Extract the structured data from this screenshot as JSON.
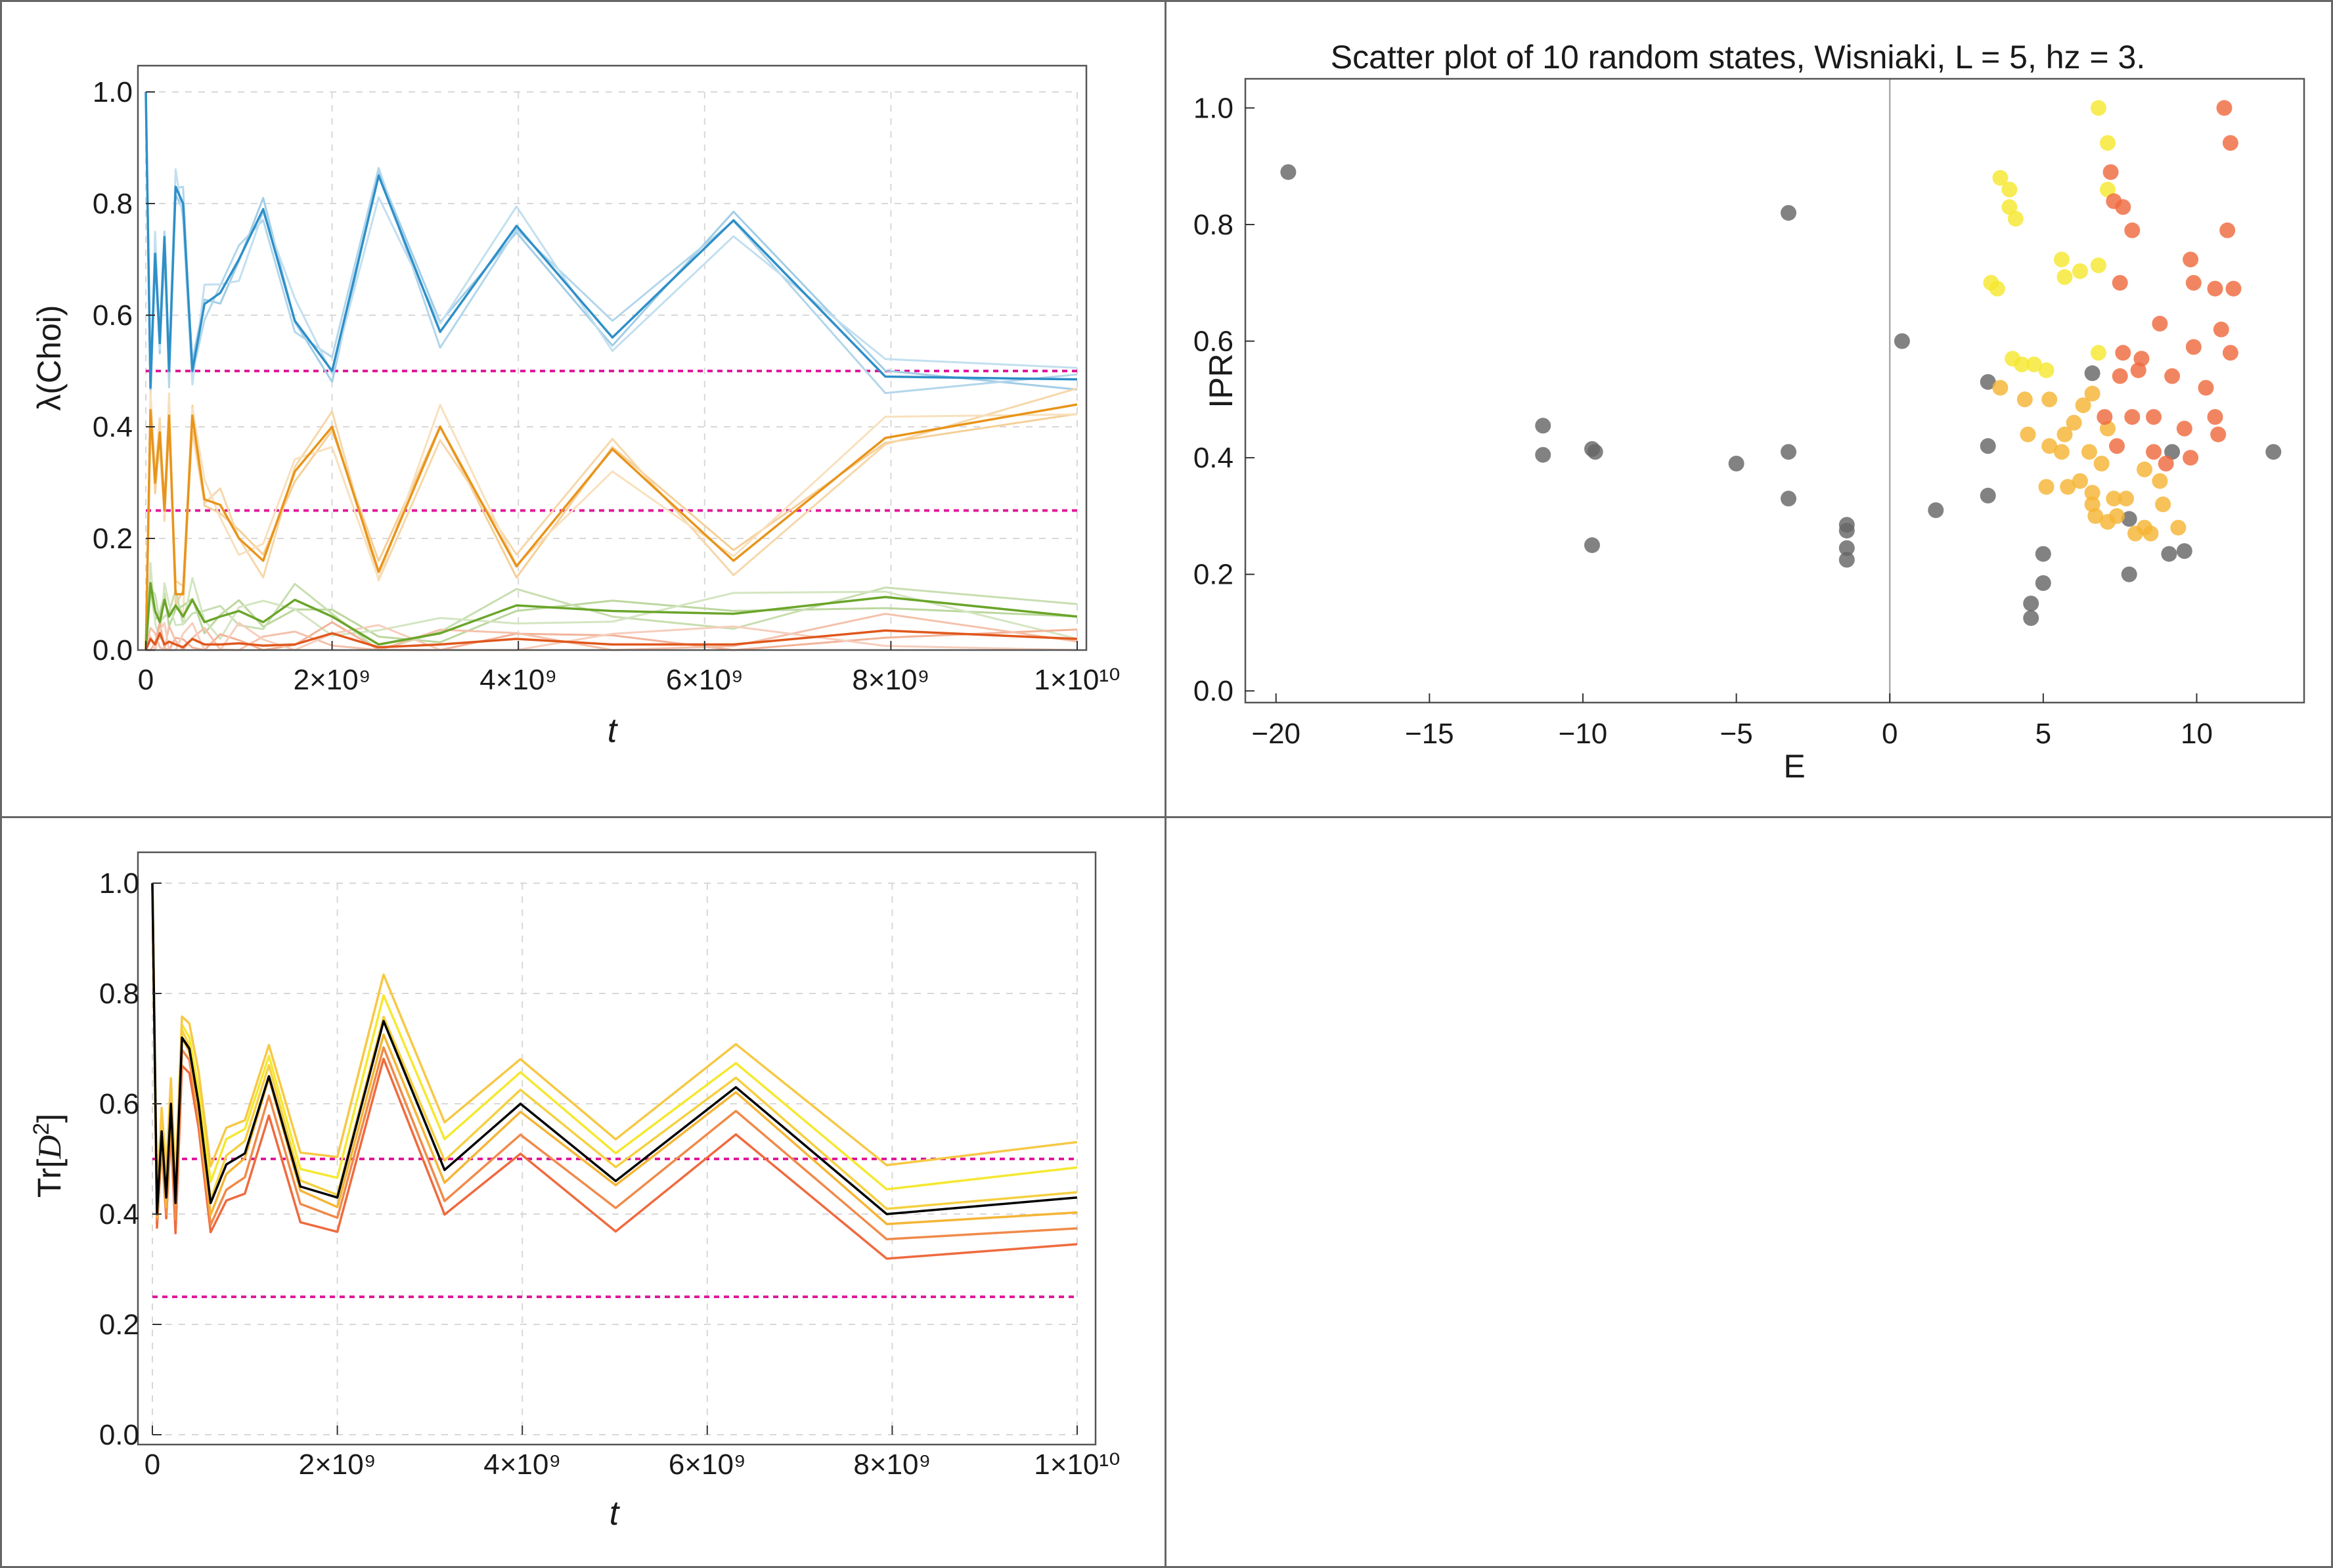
{
  "charts": {
    "choi": {
      "xlabel": "t",
      "ylabel": "λ(Choi)",
      "x_ticks": [
        "0",
        "2×10⁹",
        "4×10⁹",
        "6×10⁹",
        "8×10⁹",
        "1×10¹⁰"
      ],
      "y_ticks": [
        "0.0",
        "0.2",
        "0.4",
        "0.6",
        "0.8",
        "1.0"
      ]
    },
    "scatter": {
      "title": "Scatter plot of 10 random states, Wisniaki, L = 5, hz = 3.",
      "xlabel": "E",
      "ylabel": "IPR",
      "x_ticks": [
        "−20",
        "−15",
        "−10",
        "−5",
        "0",
        "5",
        "10"
      ],
      "y_ticks": [
        "0.0",
        "0.2",
        "0.4",
        "0.6",
        "0.8",
        "1.0"
      ]
    },
    "trace": {
      "xlabel": "t",
      "ylabel_main": "Tr[",
      "ylabel_script": "D",
      "ylabel_exp": "2",
      "ylabel_close": "]",
      "x_ticks": [
        "0",
        "2×10⁹",
        "4×10⁹",
        "6×10⁹",
        "8×10⁹",
        "1×10¹⁰"
      ],
      "y_ticks": [
        "0.0",
        "0.2",
        "0.4",
        "0.6",
        "0.8",
        "1.0"
      ]
    }
  },
  "chart_data": [
    {
      "type": "line",
      "xlabel": "t",
      "ylabel": "λ(Choi)",
      "xlim": [
        0,
        10000000000
      ],
      "ylim": [
        0,
        1
      ],
      "grid": true,
      "reference_lines": [
        {
          "y": 0.5,
          "color": "#e0199a"
        },
        {
          "y": 0.25,
          "color": "#e0199a"
        }
      ],
      "x": [
        0,
        50000000,
        100000000,
        150000000,
        200000000,
        250000000,
        320000000,
        400000000,
        500000000,
        630000000,
        800000000,
        1000000000,
        1260000000,
        1600000000,
        2000000000,
        2500000000,
        3160000000,
        3980000000,
        5010000000,
        6310000000,
        7940000000,
        10000000000
      ],
      "series": [
        {
          "color": "#2e8fc8",
          "values": [
            1.0,
            0.47,
            0.71,
            0.55,
            0.74,
            0.5,
            0.83,
            0.8,
            0.5,
            0.62,
            0.64,
            0.7,
            0.79,
            0.59,
            0.5,
            0.85,
            0.57,
            0.76,
            0.56,
            0.77,
            0.49,
            0.485
          ]
        },
        {
          "color": "#e8941a",
          "values": [
            0.0,
            0.43,
            0.3,
            0.39,
            0.25,
            0.42,
            0.1,
            0.1,
            0.42,
            0.27,
            0.26,
            0.2,
            0.16,
            0.32,
            0.4,
            0.14,
            0.4,
            0.15,
            0.36,
            0.16,
            0.38,
            0.44
          ]
        },
        {
          "color": "#6aa52a",
          "values": [
            0.0,
            0.12,
            0.07,
            0.05,
            0.09,
            0.06,
            0.08,
            0.06,
            0.09,
            0.05,
            0.06,
            0.07,
            0.05,
            0.09,
            0.06,
            0.01,
            0.03,
            0.08,
            0.07,
            0.065,
            0.095,
            0.06
          ]
        },
        {
          "color": "#e0571d",
          "values": [
            0.0,
            0.02,
            0.01,
            0.03,
            0.01,
            0.015,
            0.01,
            0.005,
            0.02,
            0.01,
            0.01,
            0.012,
            0.008,
            0.01,
            0.03,
            0.005,
            0.01,
            0.02,
            0.01,
            0.01,
            0.035,
            0.02
          ]
        }
      ]
    },
    {
      "type": "scatter",
      "title": "Scatter plot of 10 random states, Wisniaki, L = 5, hz = 3.",
      "xlabel": "E",
      "ylabel": "IPR",
      "xlim": [
        -21,
        13.5
      ],
      "ylim": [
        -0.02,
        1.05
      ],
      "grid": false,
      "series": [
        {
          "color": "#666666",
          "points": [
            [
              -19.6,
              0.89
            ],
            [
              -11.3,
              0.455
            ],
            [
              -11.3,
              0.405
            ],
            [
              -9.7,
              0.415
            ],
            [
              -9.6,
              0.41
            ],
            [
              -9.7,
              0.25
            ],
            [
              -5,
              0.39
            ],
            [
              -3.3,
              0.82
            ],
            [
              -3.3,
              0.41
            ],
            [
              -3.3,
              0.33
            ],
            [
              -1.4,
              0.285
            ],
            [
              -1.4,
              0.275
            ],
            [
              -1.4,
              0.245
            ],
            [
              -1.4,
              0.225
            ],
            [
              0.4,
              0.6
            ],
            [
              1.5,
              0.31
            ],
            [
              3.2,
              0.53
            ],
            [
              3.2,
              0.42
            ],
            [
              3.2,
              0.335
            ],
            [
              4.6,
              0.15
            ],
            [
              4.6,
              0.125
            ],
            [
              5.0,
              0.235
            ],
            [
              5.0,
              0.185
            ],
            [
              6.6,
              0.545
            ],
            [
              7.8,
              0.295
            ],
            [
              7.8,
              0.2
            ],
            [
              9.1,
              0.235
            ],
            [
              9.6,
              0.24
            ],
            [
              9.2,
              0.41
            ],
            [
              12.5,
              0.41
            ]
          ]
        },
        {
          "color": "#f5e830",
          "points": [
            [
              6.8,
              1.0
            ],
            [
              7.1,
              0.94
            ],
            [
              3.6,
              0.88
            ],
            [
              3.9,
              0.86
            ],
            [
              3.9,
              0.83
            ],
            [
              4.1,
              0.81
            ],
            [
              7.1,
              0.86
            ],
            [
              3.3,
              0.7
            ],
            [
              3.5,
              0.69
            ],
            [
              5.6,
              0.74
            ],
            [
              5.7,
              0.71
            ],
            [
              6.8,
              0.73
            ],
            [
              4.0,
              0.57
            ],
            [
              4.3,
              0.56
            ],
            [
              4.7,
              0.56
            ],
            [
              5.1,
              0.55
            ],
            [
              6.2,
              0.72
            ],
            [
              6.8,
              0.58
            ]
          ]
        },
        {
          "color": "#f5b535",
          "points": [
            [
              3.6,
              0.52
            ],
            [
              4.4,
              0.5
            ],
            [
              5.2,
              0.5
            ],
            [
              5.7,
              0.44
            ],
            [
              6.0,
              0.46
            ],
            [
              6.3,
              0.49
            ],
            [
              6.6,
              0.51
            ],
            [
              7.1,
              0.45
            ],
            [
              4.5,
              0.44
            ],
            [
              5.2,
              0.42
            ],
            [
              5.6,
              0.41
            ],
            [
              6.5,
              0.41
            ],
            [
              6.9,
              0.39
            ],
            [
              5.1,
              0.35
            ],
            [
              5.8,
              0.35
            ],
            [
              6.2,
              0.36
            ],
            [
              6.6,
              0.34
            ],
            [
              7.3,
              0.33
            ],
            [
              7.7,
              0.33
            ],
            [
              8.3,
              0.38
            ],
            [
              8.8,
              0.36
            ],
            [
              6.7,
              0.3
            ],
            [
              7.1,
              0.29
            ],
            [
              7.4,
              0.3
            ],
            [
              8.0,
              0.27
            ],
            [
              8.3,
              0.28
            ],
            [
              8.9,
              0.32
            ],
            [
              9.4,
              0.28
            ],
            [
              6.6,
              0.32
            ],
            [
              8.5,
              0.27
            ]
          ]
        },
        {
          "color": "#ef6a3e",
          "points": [
            [
              10.9,
              1.0
            ],
            [
              11.1,
              0.94
            ],
            [
              7.2,
              0.89
            ],
            [
              7.3,
              0.84
            ],
            [
              7.6,
              0.83
            ],
            [
              7.9,
              0.79
            ],
            [
              11.0,
              0.79
            ],
            [
              7.5,
              0.7
            ],
            [
              9.8,
              0.74
            ],
            [
              9.9,
              0.7
            ],
            [
              10.6,
              0.69
            ],
            [
              11.2,
              0.69
            ],
            [
              8.8,
              0.63
            ],
            [
              10.8,
              0.62
            ],
            [
              7.6,
              0.58
            ],
            [
              8.2,
              0.57
            ],
            [
              9.9,
              0.59
            ],
            [
              11.1,
              0.58
            ],
            [
              7.5,
              0.54
            ],
            [
              8.1,
              0.55
            ],
            [
              9.2,
              0.54
            ],
            [
              10.3,
              0.52
            ],
            [
              7.0,
              0.47
            ],
            [
              7.9,
              0.47
            ],
            [
              8.6,
              0.47
            ],
            [
              9.6,
              0.45
            ],
            [
              10.6,
              0.47
            ],
            [
              7.4,
              0.42
            ],
            [
              8.6,
              0.41
            ],
            [
              9.0,
              0.39
            ],
            [
              10.7,
              0.44
            ],
            [
              9.8,
              0.4
            ]
          ]
        }
      ]
    },
    {
      "type": "line",
      "xlabel": "t",
      "ylabel": "Tr[D²]",
      "xlim": [
        0,
        10000000000
      ],
      "ylim": [
        0,
        1
      ],
      "grid": true,
      "reference_lines": [
        {
          "y": 0.5,
          "color": "#e0199a"
        },
        {
          "y": 0.25,
          "color": "#e0199a"
        }
      ],
      "x": [
        0,
        50000000,
        100000000,
        150000000,
        200000000,
        250000000,
        320000000,
        400000000,
        500000000,
        630000000,
        800000000,
        1000000000,
        1260000000,
        1600000000,
        2000000000,
        2500000000,
        3160000000,
        3980000000,
        5010000000,
        6310000000,
        7940000000,
        10000000000
      ],
      "series": [
        {
          "color": "#000000",
          "values": [
            1.0,
            0.4,
            0.55,
            0.43,
            0.6,
            0.42,
            0.72,
            0.7,
            0.6,
            0.42,
            0.49,
            0.51,
            0.65,
            0.45,
            0.43,
            0.75,
            0.48,
            0.6,
            0.46,
            0.63,
            0.4,
            0.43
          ]
        }
      ]
    }
  ]
}
